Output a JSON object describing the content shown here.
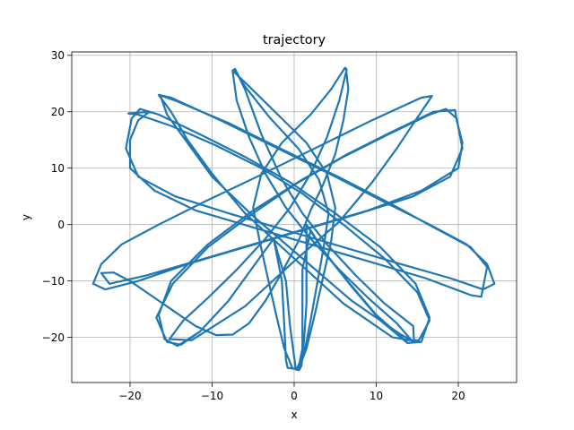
{
  "chart_data": {
    "type": "line",
    "title": "trajectory",
    "xlabel": "x",
    "ylabel": "y",
    "xlim": [
      -27.1,
      27.1
    ],
    "ylim": [
      -28.0,
      30.6
    ],
    "x_ticks": [
      -20,
      -10,
      0,
      10,
      20
    ],
    "x_tick_labels": [
      "−20",
      "−10",
      "0",
      "10",
      "20"
    ],
    "y_ticks": [
      -20,
      -10,
      0,
      10,
      20,
      30
    ],
    "y_tick_labels": [
      "−20",
      "−10",
      "0",
      "10",
      "20",
      "30"
    ],
    "grid": true,
    "legend": "none",
    "series": [
      {
        "points": [
          [
            6.3,
            27.7
          ],
          [
            6.6,
            24.0
          ],
          [
            6.0,
            18.5
          ],
          [
            5.0,
            12.5
          ],
          [
            3.5,
            7.0
          ],
          [
            2.0,
            2.5
          ],
          [
            0.5,
            -3.0
          ],
          [
            -1.5,
            -8.5
          ],
          [
            -3.5,
            -13.5
          ],
          [
            -5.5,
            -17.5
          ],
          [
            -7.5,
            -19.5
          ],
          [
            -9.5,
            -19.6
          ],
          [
            -12.0,
            -18.0
          ],
          [
            -14.5,
            -15.5
          ],
          [
            -17.5,
            -12.5
          ],
          [
            -20.0,
            -10.0
          ],
          [
            -22.0,
            -8.5
          ],
          [
            -23.5,
            -8.6
          ],
          [
            -22.5,
            -10.5
          ],
          [
            -18.0,
            -9.0
          ],
          [
            -12.0,
            -6.5
          ],
          [
            -5.0,
            -3.5
          ],
          [
            2.0,
            -0.5
          ],
          [
            9.0,
            2.5
          ],
          [
            15.5,
            6.0
          ],
          [
            20.0,
            10.0
          ],
          [
            20.5,
            14.5
          ],
          [
            19.8,
            18.5
          ],
          [
            19.6,
            20.3
          ],
          [
            17.0,
            20.0
          ],
          [
            12.0,
            16.5
          ],
          [
            6.5,
            12.5
          ],
          [
            1.0,
            8.0
          ],
          [
            -5.0,
            2.5
          ],
          [
            -10.5,
            -3.5
          ],
          [
            -15.0,
            -10.0
          ],
          [
            -16.5,
            -16.0
          ],
          [
            -15.8,
            -20.3
          ],
          [
            -14.2,
            -21.5
          ],
          [
            -11.5,
            -19.0
          ],
          [
            -8.0,
            -13.5
          ],
          [
            -5.0,
            -7.5
          ],
          [
            -2.5,
            -2.5
          ],
          [
            -1.0,
            -10.0
          ],
          [
            -0.5,
            -18.0
          ],
          [
            0.0,
            -23.5
          ],
          [
            0.2,
            -25.7
          ],
          [
            0.5,
            -25.8
          ],
          [
            1.5,
            -22.0
          ],
          [
            2.5,
            -16.0
          ],
          [
            3.5,
            -9.5
          ],
          [
            4.5,
            -3.0
          ],
          [
            5.0,
            3.0
          ],
          [
            4.0,
            9.0
          ],
          [
            1.5,
            14.5
          ],
          [
            -2.0,
            19.5
          ],
          [
            -5.5,
            24.5
          ],
          [
            -7.5,
            27.3
          ],
          [
            -7.2,
            27.6
          ],
          [
            -6.0,
            24.0
          ],
          [
            -4.0,
            16.0
          ],
          [
            -1.5,
            8.0
          ],
          [
            1.0,
            2.0
          ],
          [
            4.0,
            -3.5
          ],
          [
            7.5,
            -9.0
          ],
          [
            11.0,
            -14.0
          ],
          [
            14.5,
            -18.0
          ],
          [
            14.6,
            -20.6
          ],
          [
            12.0,
            -20.0
          ],
          [
            6.0,
            -14.0
          ],
          [
            0.0,
            -6.0
          ],
          [
            -6.0,
            2.0
          ],
          [
            -10.0,
            9.0
          ],
          [
            -13.0,
            15.0
          ],
          [
            -15.0,
            20.0
          ],
          [
            -16.5,
            23.0
          ],
          [
            -15.0,
            22.5
          ],
          [
            -9.0,
            18.5
          ],
          [
            -2.0,
            13.5
          ],
          [
            5.0,
            8.5
          ],
          [
            11.0,
            4.0
          ],
          [
            16.5,
            0.0
          ],
          [
            21.0,
            -3.5
          ],
          [
            23.5,
            -7.0
          ],
          [
            24.4,
            -10.5
          ],
          [
            23.0,
            -11.5
          ],
          [
            19.0,
            -9.5
          ],
          [
            13.0,
            -7.0
          ],
          [
            6.0,
            -4.0
          ],
          [
            -1.0,
            -1.0
          ],
          [
            -8.0,
            2.0
          ],
          [
            -14.5,
            5.0
          ],
          [
            -19.0,
            8.5
          ],
          [
            -20.5,
            13.5
          ],
          [
            -19.8,
            18.8
          ],
          [
            -18.8,
            20.5
          ],
          [
            -16.5,
            19.5
          ],
          [
            -11.5,
            16.0
          ],
          [
            -6.0,
            12.0
          ],
          [
            -0.5,
            7.5
          ],
          [
            5.0,
            2.0
          ],
          [
            10.5,
            -4.0
          ],
          [
            14.8,
            -10.5
          ],
          [
            16.5,
            -16.5
          ],
          [
            15.5,
            -20.8
          ],
          [
            13.8,
            -21.0
          ],
          [
            10.5,
            -17.0
          ],
          [
            7.0,
            -11.0
          ],
          [
            4.0,
            -5.5
          ],
          [
            2.0,
            -1.0
          ],
          [
            1.0,
            -8.0
          ],
          [
            1.0,
            -15.5
          ],
          [
            1.0,
            -22.0
          ],
          [
            0.5,
            -25.6
          ],
          [
            -0.2,
            -25.5
          ],
          [
            -1.2,
            -22.0
          ],
          [
            -2.2,
            -16.0
          ],
          [
            -3.2,
            -9.5
          ],
          [
            -4.2,
            -3.0
          ],
          [
            -5.0,
            3.0
          ],
          [
            -4.0,
            9.0
          ],
          [
            -1.5,
            14.5
          ],
          [
            2.0,
            19.5
          ],
          [
            4.5,
            24.0
          ],
          [
            6.2,
            27.8
          ],
          [
            6.4,
            27.5
          ],
          [
            5.5,
            22.0
          ],
          [
            4.0,
            15.5
          ],
          [
            2.0,
            9.0
          ],
          [
            -0.5,
            3.0
          ],
          [
            -3.5,
            -2.5
          ],
          [
            -7.0,
            -8.0
          ],
          [
            -10.5,
            -13.0
          ],
          [
            -13.5,
            -17.0
          ],
          [
            -15.2,
            -20.3
          ],
          [
            -12.5,
            -20.5
          ],
          [
            -6.0,
            -14.5
          ],
          [
            0.0,
            -6.5
          ],
          [
            5.5,
            0.5
          ],
          [
            9.5,
            7.5
          ],
          [
            12.5,
            13.5
          ],
          [
            14.8,
            18.5
          ],
          [
            16.8,
            22.8
          ],
          [
            15.5,
            22.5
          ],
          [
            9.5,
            18.5
          ],
          [
            2.5,
            13.5
          ],
          [
            -4.5,
            8.5
          ],
          [
            -11.0,
            4.0
          ],
          [
            -16.5,
            0.0
          ],
          [
            -21.0,
            -3.5
          ],
          [
            -23.5,
            -7.0
          ],
          [
            -24.5,
            -10.5
          ],
          [
            -23.0,
            -11.5
          ],
          [
            -19.0,
            -10.0
          ],
          [
            -13.0,
            -7.0
          ],
          [
            -6.0,
            -4.0
          ],
          [
            1.0,
            -1.0
          ],
          [
            8.0,
            2.0
          ],
          [
            14.5,
            5.0
          ],
          [
            19.0,
            8.5
          ],
          [
            20.5,
            13.5
          ],
          [
            19.8,
            18.8
          ],
          [
            18.5,
            20.5
          ],
          [
            16.5,
            19.5
          ],
          [
            11.5,
            16.0
          ],
          [
            6.0,
            12.0
          ],
          [
            0.5,
            7.5
          ],
          [
            -5.0,
            2.0
          ],
          [
            -10.5,
            -4.0
          ],
          [
            -14.8,
            -10.5
          ],
          [
            -16.8,
            -16.5
          ],
          [
            -15.5,
            -20.8
          ],
          [
            -13.8,
            -21.3
          ],
          [
            -11.5,
            -19.0
          ],
          [
            -8.0,
            -13.5
          ],
          [
            -5.0,
            -7.5
          ],
          [
            -2.5,
            -2.5
          ],
          [
            -1.5,
            -10.0
          ],
          [
            -1.2,
            -18.0
          ],
          [
            -1.0,
            -24.0
          ],
          [
            -0.8,
            -25.4
          ],
          [
            0.3,
            -25.6
          ],
          [
            1.2,
            -23.0
          ],
          [
            2.0,
            -17.0
          ],
          [
            2.8,
            -10.5
          ],
          [
            3.6,
            -4.0
          ],
          [
            4.2,
            2.0
          ],
          [
            3.0,
            8.0
          ],
          [
            0.5,
            13.5
          ],
          [
            -3.0,
            19.0
          ],
          [
            -6.0,
            24.5
          ],
          [
            -7.3,
            27.4
          ],
          [
            -7.5,
            27.2
          ],
          [
            -7.0,
            22.0
          ],
          [
            -5.5,
            15.5
          ],
          [
            -3.5,
            9.0
          ],
          [
            -1.0,
            3.0
          ],
          [
            2.0,
            -2.5
          ],
          [
            5.5,
            -8.0
          ],
          [
            9.0,
            -13.0
          ],
          [
            12.5,
            -17.5
          ],
          [
            14.4,
            -20.7
          ],
          [
            14.8,
            -20.9
          ],
          [
            13.0,
            -19.5
          ],
          [
            7.0,
            -13.5
          ],
          [
            1.0,
            -6.0
          ],
          [
            -5.0,
            1.5
          ],
          [
            -10.0,
            8.5
          ],
          [
            -13.0,
            14.5
          ],
          [
            -15.5,
            19.5
          ],
          [
            -16.3,
            22.9
          ],
          [
            -14.5,
            22.0
          ],
          [
            -8.0,
            18.0
          ],
          [
            -1.0,
            13.0
          ],
          [
            6.0,
            8.0
          ],
          [
            12.0,
            3.5
          ],
          [
            17.0,
            -0.5
          ],
          [
            21.5,
            -4.0
          ],
          [
            23.5,
            -7.5
          ],
          [
            22.8,
            -12.8
          ],
          [
            21.5,
            -12.5
          ],
          [
            16.0,
            -9.5
          ],
          [
            9.0,
            -6.5
          ],
          [
            2.0,
            -3.5
          ],
          [
            -5.0,
            -0.5
          ],
          [
            -12.0,
            2.5
          ],
          [
            -17.0,
            6.0
          ],
          [
            -20.0,
            10.0
          ],
          [
            -20.0,
            15.0
          ],
          [
            -19.0,
            18.5
          ],
          [
            -17.6,
            20.0
          ],
          [
            -20.2,
            19.7
          ],
          [
            -19.0,
            19.5
          ],
          [
            -15.0,
            17.5
          ],
          [
            -9.5,
            14.0
          ],
          [
            -4.0,
            10.0
          ],
          [
            1.0,
            5.5
          ],
          [
            6.0,
            0.0
          ],
          [
            11.0,
            -6.0
          ],
          [
            15.0,
            -12.0
          ],
          [
            16.5,
            -17.0
          ],
          [
            15.2,
            -20.5
          ],
          [
            13.5,
            -20.5
          ],
          [
            10.0,
            -16.0
          ],
          [
            6.5,
            -10.0
          ],
          [
            3.5,
            -4.5
          ],
          [
            1.5,
            0.0
          ],
          [
            1.5,
            -7.0
          ],
          [
            1.5,
            -14.0
          ],
          [
            1.2,
            -20.5
          ],
          [
            0.9,
            -25.0
          ],
          [
            0.6,
            -25.8
          ]
        ]
      }
    ]
  },
  "colors": {
    "line": "#1f77b4",
    "grid": "#b0b0b0",
    "axes": "#000000",
    "background": "#ffffff"
  }
}
